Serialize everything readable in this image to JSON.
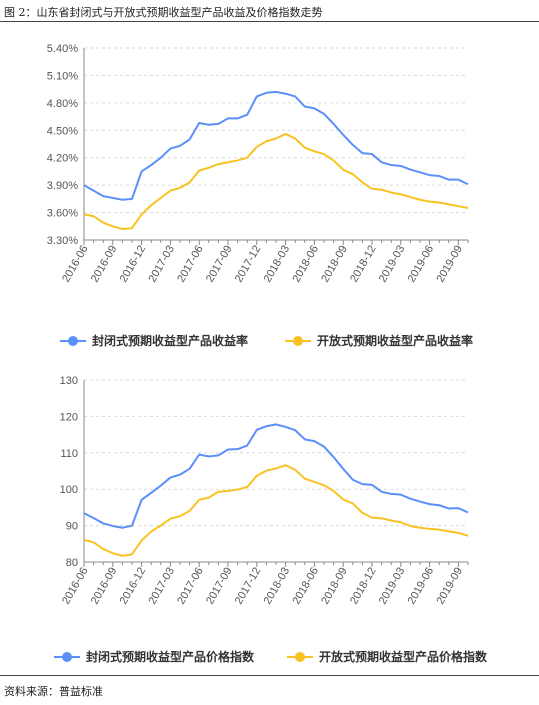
{
  "figure_title": "图 2：山东省封闭式与开放式预期收益型产品收益及价格指数走势",
  "source_note": "资料来源：普益标准",
  "colors": {
    "series_1": "#5B8FF9",
    "series_2": "#F8C322",
    "grid": "#d9d9d9",
    "axis": "#888888"
  },
  "chart_data": [
    {
      "type": "line",
      "ylim": [
        3.3,
        5.4
      ],
      "yticks": [
        "3.30%",
        "3.60%",
        "3.90%",
        "4.20%",
        "4.50%",
        "4.80%",
        "5.10%",
        "5.40%"
      ],
      "ytick_values": [
        3.3,
        3.6,
        3.9,
        4.2,
        4.5,
        4.8,
        5.1,
        5.4
      ],
      "xticks": [
        "2016-06",
        "2016-09",
        "2016-12",
        "2017-03",
        "2017-06",
        "2017-09",
        "2017-12",
        "2018-03",
        "2018-06",
        "2018-09",
        "2018-12",
        "2019-03",
        "2019-06",
        "2019-09"
      ],
      "legend_position": "bottom",
      "grid": "horizontal-dashed",
      "series": [
        {
          "name": "封闭式预期收益型产品收益率",
          "values": [
            3.9,
            3.84,
            3.78,
            3.76,
            3.74,
            3.75,
            4.05,
            4.12,
            4.2,
            4.3,
            4.33,
            4.4,
            4.58,
            4.56,
            4.57,
            4.63,
            4.63,
            4.67,
            4.87,
            4.91,
            4.92,
            4.9,
            4.87,
            4.76,
            4.74,
            4.68,
            4.57,
            4.45,
            4.34,
            4.25,
            4.24,
            4.15,
            4.12,
            4.11,
            4.07,
            4.04,
            4.01,
            4.0,
            3.96,
            3.96,
            3.91
          ]
        },
        {
          "name": "开放式预期收益型产品收益率",
          "values": [
            3.58,
            3.56,
            3.49,
            3.45,
            3.42,
            3.43,
            3.58,
            3.68,
            3.76,
            3.84,
            3.87,
            3.93,
            4.06,
            4.09,
            4.13,
            4.15,
            4.17,
            4.2,
            4.32,
            4.38,
            4.41,
            4.46,
            4.41,
            4.31,
            4.27,
            4.24,
            4.17,
            4.07,
            4.02,
            3.93,
            3.86,
            3.85,
            3.82,
            3.8,
            3.77,
            3.74,
            3.72,
            3.71,
            3.69,
            3.67,
            3.65
          ]
        }
      ]
    },
    {
      "type": "line",
      "ylim": [
        80,
        130
      ],
      "yticks": [
        "80",
        "90",
        "100",
        "110",
        "120",
        "130"
      ],
      "ytick_values": [
        80,
        90,
        100,
        110,
        120,
        130
      ],
      "xticks": [
        "2016-06",
        "2016-09",
        "2016-12",
        "2017-03",
        "2017-06",
        "2017-09",
        "2017-12",
        "2018-03",
        "2018-06",
        "2018-09",
        "2018-12",
        "2019-03",
        "2019-06",
        "2019-09"
      ],
      "legend_position": "bottom",
      "grid": "horizontal-dashed",
      "series": [
        {
          "name": "封闭式预期收益型产品价格指数",
          "values": [
            93.4,
            92.1,
            90.6,
            89.9,
            89.4,
            90.0,
            97.1,
            99.0,
            101.0,
            103.2,
            104.0,
            105.6,
            109.5,
            109.0,
            109.3,
            110.9,
            111.0,
            112.0,
            116.3,
            117.3,
            117.8,
            117.1,
            116.2,
            113.7,
            113.2,
            111.7,
            108.8,
            105.6,
            102.6,
            101.4,
            101.2,
            99.3,
            98.7,
            98.5,
            97.4,
            96.6,
            95.9,
            95.6,
            94.7,
            94.8,
            93.6
          ]
        },
        {
          "name": "开放式预期收益型产品价格指数",
          "values": [
            86.1,
            85.4,
            83.6,
            82.4,
            81.7,
            82.1,
            85.9,
            88.4,
            90.0,
            91.9,
            92.6,
            94.0,
            97.1,
            97.7,
            99.3,
            99.5,
            99.9,
            100.6,
            103.7,
            105.1,
            105.7,
            106.6,
            105.3,
            102.9,
            102.0,
            101.1,
            99.5,
            97.2,
            96.1,
            93.5,
            92.2,
            92.0,
            91.4,
            90.9,
            89.9,
            89.4,
            89.1,
            88.9,
            88.4,
            88.0,
            87.2
          ]
        }
      ]
    }
  ]
}
